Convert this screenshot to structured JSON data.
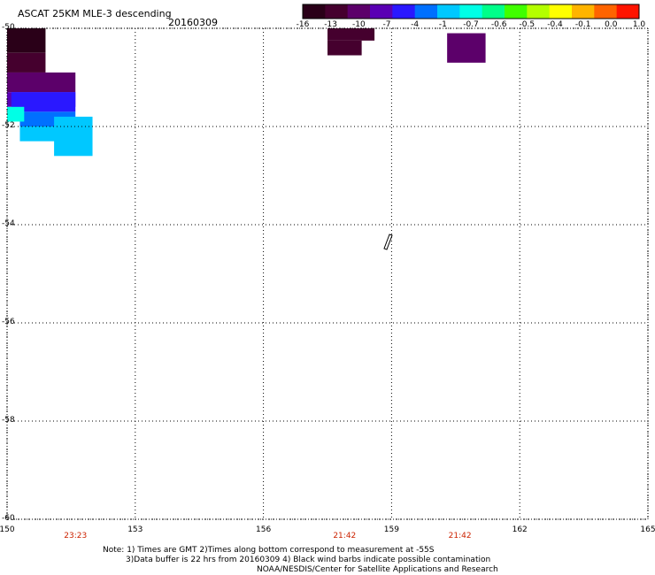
{
  "header": {
    "title": "ASCAT 25KM MLE-3 descending",
    "date": "20160309"
  },
  "colorbar": {
    "labels": [
      "-16",
      "-13",
      "-10",
      "-7",
      "-4",
      "-1",
      "-0.7",
      "-0.6",
      "-0.5",
      "-0.4",
      "-0.1",
      "0.0",
      "1.0"
    ],
    "colors": [
      "#2a0018",
      "#45002e",
      "#5c006a",
      "#5a00b4",
      "#2a18ff",
      "#0070ff",
      "#00c8ff",
      "#00ffe6",
      "#00ff8a",
      "#40ff00",
      "#b4ff00",
      "#ffff00",
      "#ffb400",
      "#ff6400",
      "#ff1400"
    ]
  },
  "map": {
    "lon_ticks": [
      "150",
      "153",
      "156",
      "159",
      "162",
      "165"
    ],
    "lat_ticks": [
      "-50",
      "-52",
      "-54",
      "-56",
      "-58",
      "-60"
    ],
    "lon_range": [
      150,
      165
    ],
    "lat_range": [
      -50,
      -60
    ],
    "times": [
      {
        "label": "23:23",
        "lon": 151.6
      },
      {
        "label": "21:42",
        "lon": 157.9
      },
      {
        "label": "21:42",
        "lon": 160.6
      }
    ]
  },
  "notes": {
    "line1": "Note: 1) Times are GMT 2)Times along bottom correspond to measurement at -55S",
    "line2": "3)Data buffer is 22 hrs from 20160309 4) Black wind barbs indicate possible contamination",
    "line3": "NOAA/NESDIS/Center for Satellite Applications and Research"
  }
}
